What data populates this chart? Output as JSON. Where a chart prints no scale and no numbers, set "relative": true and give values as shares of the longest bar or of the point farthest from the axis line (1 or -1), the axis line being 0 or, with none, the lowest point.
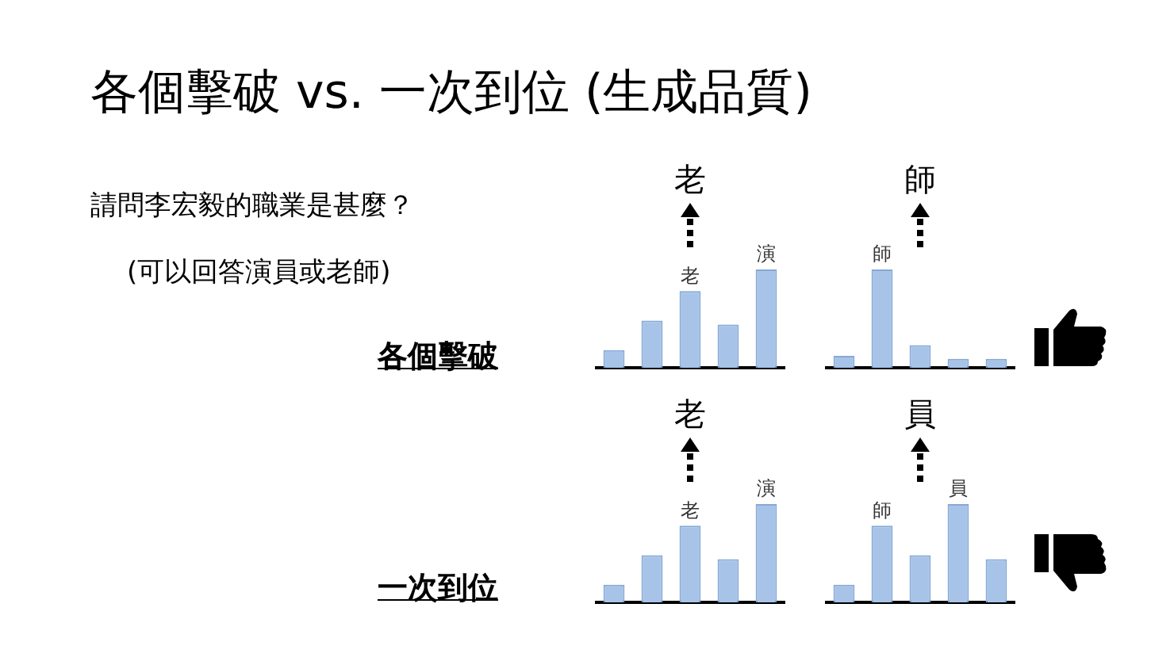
{
  "chart_data": [
    {
      "type": "other",
      "title": "各個擊破 vs. 一次到位 (生成品質)",
      "annotations": [
        "請問李宏毅的職業是甚麼？",
        "(可以回答演員或老師)",
        "各個擊破",
        "一次到位"
      ]
    },
    {
      "type": "bar",
      "title": "老",
      "categories": [
        null,
        null,
        null,
        null,
        null
      ],
      "values": [
        0.18,
        0.48,
        0.78,
        0.44,
        1
      ],
      "annotations": [
        {
          "text": "老",
          "y": 0.78
        },
        {
          "text": "演",
          "y": 1
        }
      ],
      "color": "#a7c4e8",
      "relative": true
    },
    {
      "type": "bar",
      "title": "師",
      "categories": [
        null,
        null,
        null,
        null,
        null
      ],
      "values": [
        0.12,
        1,
        0.23,
        0.09,
        0.09
      ],
      "annotations": [
        {
          "text": "師",
          "y": 1
        }
      ],
      "color": "#a7c4e8",
      "relative": true
    },
    {
      "type": "bar",
      "title": "老",
      "categories": [
        null,
        null,
        null,
        null,
        null
      ],
      "values": [
        0.18,
        0.48,
        0.78,
        0.44,
        1
      ],
      "annotations": [
        {
          "text": "老",
          "y": 0.78
        },
        {
          "text": "演",
          "y": 1
        }
      ],
      "color": "#a7c4e8",
      "relative": true
    },
    {
      "type": "bar",
      "title": "員",
      "categories": [
        null,
        null,
        null,
        null,
        null
      ],
      "values": [
        0.18,
        0.78,
        0.48,
        1,
        0.44
      ],
      "annotations": [
        {
          "text": "師",
          "y": 0.78
        },
        {
          "text": "員",
          "y": 1
        }
      ],
      "color": "#a7c4e8",
      "relative": true
    }
  ]
}
